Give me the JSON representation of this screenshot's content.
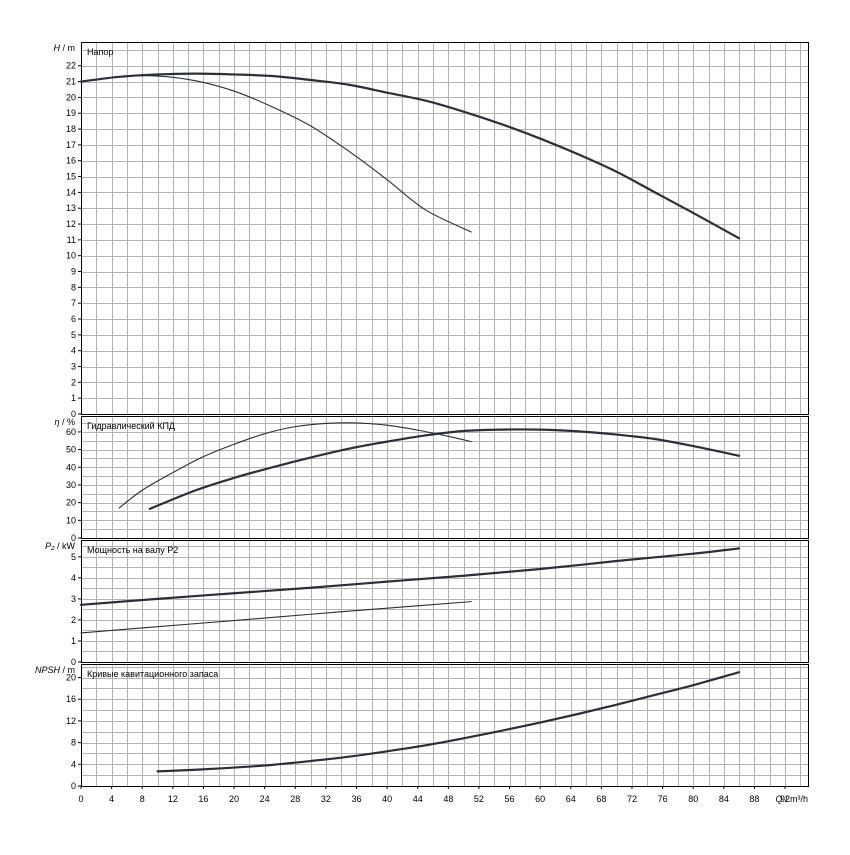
{
  "chart_data": [
    {
      "type": "line",
      "panel": "head",
      "title": "Напор",
      "ylabel_symbol": "H",
      "ylabel_unit": "m",
      "ylim": [
        0,
        23.5
      ],
      "ytick_values": [
        0,
        1,
        2,
        3,
        4,
        5,
        6,
        7,
        8,
        9,
        10,
        11,
        12,
        13,
        14,
        15,
        16,
        17,
        18,
        19,
        20,
        21,
        22
      ],
      "ytick_labels": [
        "0",
        "1",
        "2",
        "3",
        "4",
        "5",
        "6",
        "7",
        "8",
        "9",
        "10",
        "11",
        "12",
        "13",
        "14",
        "15",
        "16",
        "17",
        "18",
        "19",
        "20",
        "21",
        "22"
      ],
      "series": [
        {
          "style": "thick",
          "x": [
            0,
            5,
            10,
            15,
            20,
            25,
            30,
            35,
            40,
            45,
            50,
            55,
            60,
            65,
            70,
            75,
            80,
            86
          ],
          "y": [
            21.0,
            21.3,
            21.45,
            21.5,
            21.45,
            21.35,
            21.1,
            20.8,
            20.3,
            19.8,
            19.1,
            18.3,
            17.4,
            16.4,
            15.3,
            14.0,
            12.7,
            11.1
          ]
        },
        {
          "style": "thin",
          "x": [
            0,
            5,
            10,
            15,
            20,
            25,
            30,
            35,
            40,
            45,
            51
          ],
          "y": [
            21.0,
            21.3,
            21.35,
            21.05,
            20.4,
            19.4,
            18.2,
            16.6,
            14.8,
            12.9,
            11.5
          ]
        }
      ]
    },
    {
      "type": "line",
      "panel": "efficiency",
      "title": "Гидравлический КПД",
      "ylabel_symbol": "η",
      "ylabel_unit": "%",
      "ylim": [
        0,
        69
      ],
      "ytick_values": [
        0,
        10,
        20,
        30,
        40,
        50,
        60
      ],
      "ytick_labels": [
        "0",
        "10",
        "20",
        "30",
        "40",
        "50",
        "60"
      ],
      "series": [
        {
          "style": "thick",
          "x": [
            9,
            15,
            20,
            25,
            30,
            35,
            40,
            45,
            50,
            55,
            60,
            65,
            70,
            75,
            80,
            86
          ],
          "y": [
            16.5,
            27,
            34,
            40,
            45.5,
            50.5,
            54.5,
            58,
            60.5,
            61.3,
            61.3,
            60.3,
            58.5,
            56,
            52,
            46.5
          ]
        },
        {
          "style": "thin",
          "x": [
            5,
            8,
            12,
            16,
            20,
            24,
            28,
            32,
            36,
            40,
            44,
            48,
            51
          ],
          "y": [
            17,
            27,
            37,
            46,
            53,
            59,
            63,
            64.8,
            65.1,
            63.8,
            61,
            57.5,
            54.5
          ]
        }
      ]
    },
    {
      "type": "line",
      "panel": "power",
      "title": "Мощность на валу P2",
      "ylabel_symbol": "P₂",
      "ylabel_unit": "kW",
      "ylim": [
        0,
        5.8
      ],
      "ytick_values": [
        0,
        1,
        2,
        3,
        4,
        5
      ],
      "ytick_labels": [
        "0",
        "1",
        "2",
        "3",
        "4",
        "5"
      ],
      "series": [
        {
          "style": "thick",
          "x": [
            0,
            10,
            20,
            30,
            40,
            50,
            60,
            70,
            80,
            86
          ],
          "y": [
            2.72,
            3.0,
            3.27,
            3.53,
            3.82,
            4.1,
            4.42,
            4.8,
            5.15,
            5.4
          ]
        },
        {
          "style": "thin",
          "x": [
            0,
            10,
            20,
            30,
            40,
            51
          ],
          "y": [
            1.38,
            1.68,
            1.97,
            2.27,
            2.56,
            2.87
          ]
        }
      ]
    },
    {
      "type": "line",
      "panel": "npsh",
      "title": "Кривые кавитационного запаса",
      "ylabel_symbol": "NPSH",
      "ylabel_unit": "m",
      "ylim": [
        0,
        22.5
      ],
      "ytick_values": [
        0,
        4,
        8,
        12,
        16,
        20
      ],
      "ytick_labels": [
        "0",
        "4",
        "8",
        "12",
        "16",
        "20"
      ],
      "series": [
        {
          "style": "thick",
          "x": [
            10,
            15,
            20,
            25,
            30,
            35,
            40,
            45,
            50,
            55,
            60,
            65,
            70,
            75,
            80,
            86
          ],
          "y": [
            2.7,
            3.0,
            3.4,
            3.9,
            4.6,
            5.4,
            6.4,
            7.5,
            8.8,
            10.2,
            11.7,
            13.3,
            15.0,
            16.8,
            18.6,
            21.0
          ]
        }
      ]
    },
    {
      "type": "axis",
      "xlabel_symbol": "Q",
      "xlabel_unit": "m³/h",
      "xlim": [
        0,
        95
      ],
      "xtick_values": [
        0,
        4,
        8,
        12,
        16,
        20,
        24,
        28,
        32,
        36,
        40,
        44,
        48,
        52,
        56,
        60,
        64,
        68,
        72,
        76,
        80,
        84,
        88,
        92
      ],
      "xtick_labels": [
        "0",
        "4",
        "8",
        "12",
        "16",
        "20",
        "24",
        "28",
        "32",
        "36",
        "40",
        "44",
        "48",
        "52",
        "56",
        "60",
        "64",
        "68",
        "72",
        "76",
        "80",
        "84",
        "88",
        "92"
      ],
      "grid": true
    }
  ]
}
